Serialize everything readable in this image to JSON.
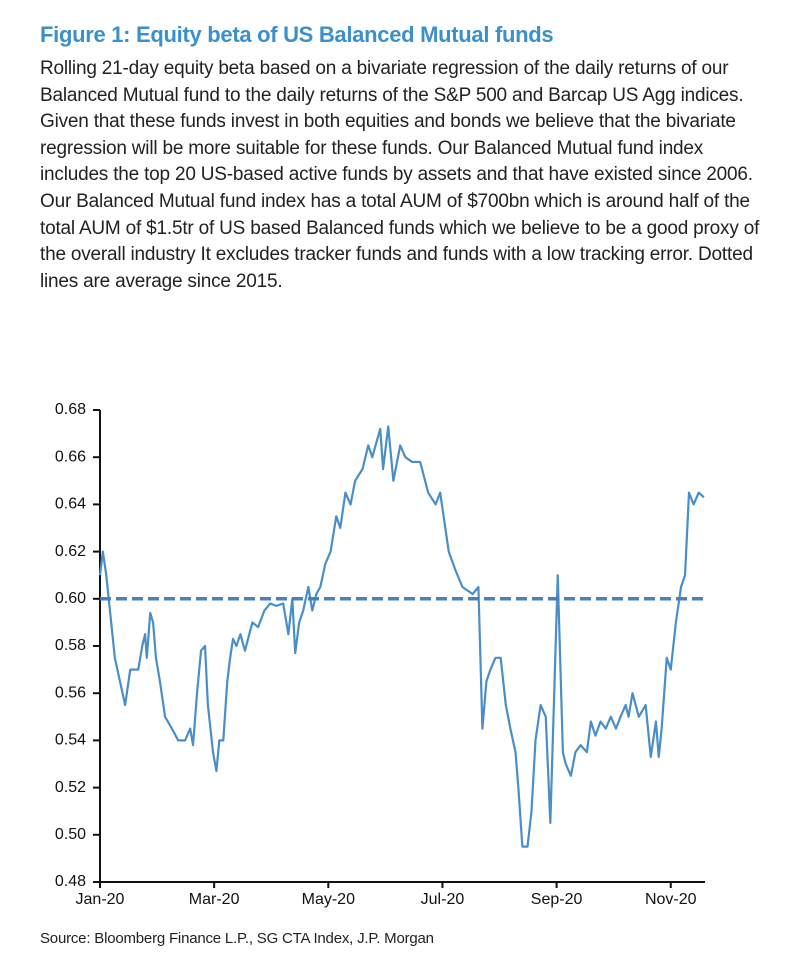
{
  "chart_data": {
    "type": "line",
    "title": "Figure 1: Equity beta of US Balanced Mutual funds",
    "subtitle": "Rolling 21-day equity beta based on a bivariate regression of the daily returns of our Balanced Mutual fund to the daily returns of the S&P 500 and Barcap US Agg indices. Given that these funds invest in both equities and bonds we believe that the bivariate regression will be more suitable for these funds. Our Balanced Mutual fund index includes the top 20 US-based active funds by assets and that have existed since 2006. Our Balanced Mutual fund index has a total AUM of $700bn which is around half of the total AUM of $1.5tr of US based Balanced funds which we believe to be a good proxy of the overall industry It excludes tracker funds and funds with a low tracking error. Dotted lines are average since 2015.",
    "source": "Source: Bloomberg Finance L.P., SG CTA Index, J.P. Morgan",
    "x": [
      0,
      0.05,
      0.11,
      0.26,
      0.44,
      0.53,
      0.67,
      0.74,
      0.79,
      0.82,
      0.88,
      0.93,
      0.98,
      1.05,
      1.14,
      1.26,
      1.37,
      1.49,
      1.58,
      1.63,
      1.7,
      1.77,
      1.84,
      1.89,
      1.98,
      2.04,
      2.09,
      2.16,
      2.23,
      2.28,
      2.33,
      2.39,
      2.46,
      2.54,
      2.67,
      2.77,
      2.88,
      2.98,
      3.09,
      3.21,
      3.3,
      3.37,
      3.42,
      3.49,
      3.56,
      3.65,
      3.72,
      3.79,
      3.86,
      3.95,
      4.04,
      4.14,
      4.21,
      4.3,
      4.39,
      4.47,
      4.6,
      4.7,
      4.77,
      4.91,
      4.96,
      5.05,
      5.14,
      5.26,
      5.35,
      5.47,
      5.61,
      5.75,
      5.88,
      5.96,
      6.11,
      6.23,
      6.35,
      6.53,
      6.63,
      6.7,
      6.77,
      6.84,
      6.93,
      7.02,
      7.11,
      7.19,
      7.28,
      7.33,
      7.4,
      7.49,
      7.56,
      7.63,
      7.72,
      7.81,
      7.89,
      8.02,
      8.11,
      8.16,
      8.25,
      8.33,
      8.42,
      8.53,
      8.6,
      8.68,
      8.77,
      8.86,
      8.95,
      9.04,
      9.12,
      9.21,
      9.26,
      9.33,
      9.44,
      9.56,
      9.65,
      9.74,
      9.79,
      9.84,
      9.93,
      10.0,
      10.09,
      10.18,
      10.25,
      10.32,
      10.4,
      10.49,
      10.58
    ],
    "series": [
      {
        "name": "Equity beta",
        "color": "#4a8ec8",
        "values": [
          0.61,
          0.62,
          0.61,
          0.575,
          0.555,
          0.57,
          0.57,
          0.58,
          0.585,
          0.575,
          0.594,
          0.59,
          0.575,
          0.565,
          0.55,
          0.545,
          0.54,
          0.54,
          0.545,
          0.538,
          0.56,
          0.578,
          0.58,
          0.555,
          0.535,
          0.527,
          0.54,
          0.54,
          0.565,
          0.575,
          0.583,
          0.58,
          0.585,
          0.578,
          0.59,
          0.588,
          0.595,
          0.598,
          0.597,
          0.598,
          0.585,
          0.6,
          0.577,
          0.59,
          0.595,
          0.605,
          0.595,
          0.602,
          0.605,
          0.615,
          0.62,
          0.635,
          0.63,
          0.645,
          0.64,
          0.65,
          0.655,
          0.665,
          0.66,
          0.672,
          0.655,
          0.673,
          0.65,
          0.665,
          0.66,
          0.658,
          0.658,
          0.645,
          0.64,
          0.645,
          0.62,
          0.612,
          0.605,
          0.602,
          0.605,
          0.545,
          0.565,
          0.57,
          0.575,
          0.575,
          0.555,
          0.545,
          0.535,
          0.52,
          0.495,
          0.495,
          0.51,
          0.54,
          0.555,
          0.55,
          0.505,
          0.61,
          0.535,
          0.53,
          0.525,
          0.535,
          0.538,
          0.535,
          0.548,
          0.542,
          0.548,
          0.545,
          0.55,
          0.545,
          0.55,
          0.555,
          0.55,
          0.56,
          0.55,
          0.555,
          0.533,
          0.548,
          0.533,
          0.545,
          0.575,
          0.57,
          0.59,
          0.605,
          0.61,
          0.645,
          0.64,
          0.645,
          0.643
        ]
      }
    ],
    "reference_line": {
      "value": 0.6,
      "color": "#4a7fbf",
      "dashed": true
    },
    "xlim": [
      0,
      10.6
    ],
    "xticks": [
      {
        "value": 0,
        "label": "Jan-20"
      },
      {
        "value": 2,
        "label": "Mar-20"
      },
      {
        "value": 4,
        "label": "May-20"
      },
      {
        "value": 6,
        "label": "Jul-20"
      },
      {
        "value": 8,
        "label": "Sep-20"
      },
      {
        "value": 10,
        "label": "Nov-20"
      }
    ],
    "ylim": [
      0.48,
      0.68
    ],
    "yticks": [
      0.48,
      {
        "value": 0.5,
        "label": "0.50"
      },
      0.52,
      0.54,
      0.56,
      0.58,
      {
        "value": 0.6,
        "label": "0.60"
      },
      0.62,
      0.64,
      0.66,
      0.68
    ],
    "grid": false
  }
}
